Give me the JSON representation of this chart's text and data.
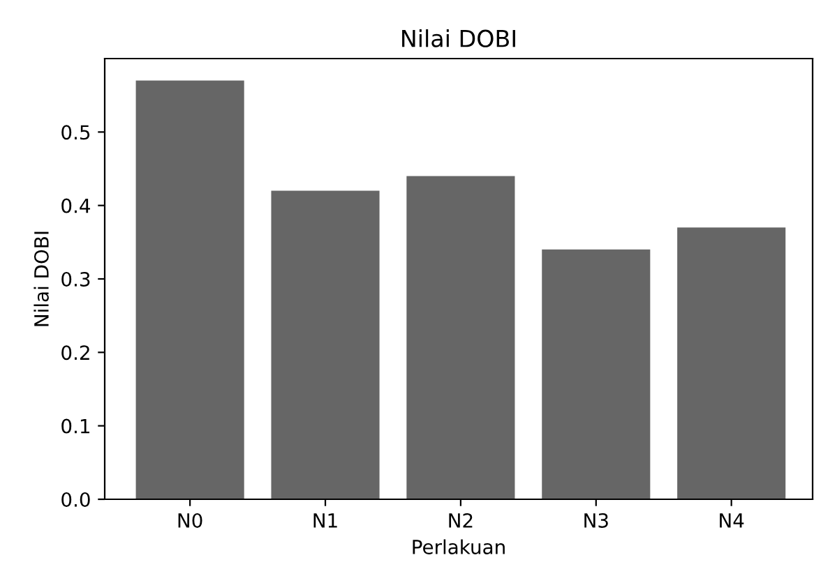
{
  "chart_data": {
    "type": "bar",
    "title": "Nilai DOBI",
    "xlabel": "Perlakuan",
    "ylabel": "Nilai DOBI",
    "categories": [
      "N0",
      "N1",
      "N2",
      "N3",
      "N4"
    ],
    "values": [
      0.57,
      0.42,
      0.44,
      0.34,
      0.37
    ],
    "color": "#666666",
    "ylim": [
      0,
      0.6
    ],
    "yticks": [
      {
        "value": 0,
        "label": "0.0"
      },
      0.1,
      0.2,
      0.3,
      0.4,
      0.5
    ],
    "grid": false
  }
}
